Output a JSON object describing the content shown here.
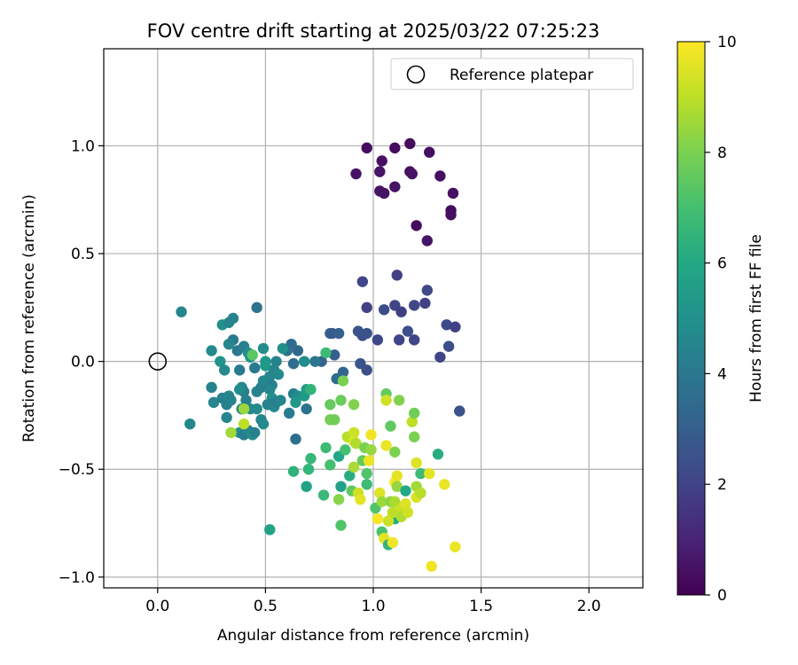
{
  "chart_data": {
    "type": "scatter",
    "title": "FOV centre drift starting at 2025/03/22 07:25:23",
    "xlabel": "Angular distance from reference (arcmin)",
    "ylabel": "Rotation from reference (arcmin)",
    "xlim": [
      -0.25,
      2.25
    ],
    "ylim": [
      -1.05,
      1.45
    ],
    "xticks": [
      0.0,
      0.5,
      1.0,
      1.5,
      2.0
    ],
    "xtick_labels": [
      "0.0",
      "0.5",
      "1.0",
      "1.5",
      "2.0"
    ],
    "yticks": [
      -1.0,
      -0.5,
      0.0,
      0.5,
      1.0
    ],
    "ytick_labels": [
      "−1.0",
      "−0.5",
      "0.0",
      "0.5",
      "1.0"
    ],
    "grid": true,
    "legend": {
      "position": "top-right",
      "entries": [
        "Reference platepar"
      ]
    },
    "reference_point": {
      "x": 0.0,
      "y": 0.0,
      "label": "Reference platepar"
    },
    "colorbar": {
      "label": "Hours from first FF file",
      "colormap": "viridis",
      "range": [
        0,
        10
      ],
      "ticks": [
        0,
        2,
        4,
        6,
        8,
        10
      ],
      "tick_labels": [
        "0",
        "2",
        "4",
        "6",
        "8",
        "10"
      ]
    },
    "points": [
      {
        "x": 0.97,
        "y": 0.99,
        "h": 0.3
      },
      {
        "x": 1.17,
        "y": 1.01,
        "h": 0.3
      },
      {
        "x": 1.26,
        "y": 0.97,
        "h": 0.4
      },
      {
        "x": 1.04,
        "y": 0.93,
        "h": 0.4
      },
      {
        "x": 1.1,
        "y": 0.99,
        "h": 0.3
      },
      {
        "x": 1.03,
        "y": 0.88,
        "h": 0.5
      },
      {
        "x": 0.92,
        "y": 0.87,
        "h": 0.5
      },
      {
        "x": 1.17,
        "y": 0.88,
        "h": 0.4
      },
      {
        "x": 1.18,
        "y": 0.87,
        "h": 0.5
      },
      {
        "x": 1.31,
        "y": 0.86,
        "h": 0.4
      },
      {
        "x": 1.1,
        "y": 0.81,
        "h": 0.5
      },
      {
        "x": 1.03,
        "y": 0.79,
        "h": 0.5
      },
      {
        "x": 1.05,
        "y": 0.78,
        "h": 0.5
      },
      {
        "x": 1.37,
        "y": 0.78,
        "h": 0.4
      },
      {
        "x": 1.36,
        "y": 0.7,
        "h": 0.3
      },
      {
        "x": 1.36,
        "y": 0.68,
        "h": 0.4
      },
      {
        "x": 1.2,
        "y": 0.63,
        "h": 0.3
      },
      {
        "x": 1.25,
        "y": 0.56,
        "h": 0.6
      },
      {
        "x": 1.11,
        "y": 0.4,
        "h": 1.9
      },
      {
        "x": 0.95,
        "y": 0.37,
        "h": 2.1
      },
      {
        "x": 1.25,
        "y": 0.33,
        "h": 2.2
      },
      {
        "x": 0.97,
        "y": 0.25,
        "h": 1.9
      },
      {
        "x": 1.05,
        "y": 0.24,
        "h": 2.3
      },
      {
        "x": 1.1,
        "y": 0.26,
        "h": 2.0
      },
      {
        "x": 1.13,
        "y": 0.23,
        "h": 1.8
      },
      {
        "x": 1.19,
        "y": 0.26,
        "h": 2.2
      },
      {
        "x": 1.24,
        "y": 0.27,
        "h": 1.9
      },
      {
        "x": 1.34,
        "y": 0.17,
        "h": 2.2
      },
      {
        "x": 1.38,
        "y": 0.16,
        "h": 1.9
      },
      {
        "x": 1.16,
        "y": 0.14,
        "h": 2.4
      },
      {
        "x": 1.12,
        "y": 0.1,
        "h": 2.0
      },
      {
        "x": 1.19,
        "y": 0.1,
        "h": 2.1
      },
      {
        "x": 0.93,
        "y": 0.14,
        "h": 2.6
      },
      {
        "x": 0.95,
        "y": 0.12,
        "h": 2.4
      },
      {
        "x": 0.97,
        "y": 0.13,
        "h": 2.5
      },
      {
        "x": 1.02,
        "y": 0.1,
        "h": 2.2
      },
      {
        "x": 1.35,
        "y": 0.07,
        "h": 2.4
      },
      {
        "x": 1.31,
        "y": 0.02,
        "h": 2.0
      },
      {
        "x": 0.94,
        "y": -0.01,
        "h": 2.6
      },
      {
        "x": 0.97,
        "y": -0.04,
        "h": 2.4
      },
      {
        "x": 1.4,
        "y": -0.23,
        "h": 2.5
      },
      {
        "x": 0.8,
        "y": 0.13,
        "h": 3.1
      },
      {
        "x": 0.81,
        "y": 0.13,
        "h": 2.9
      },
      {
        "x": 0.84,
        "y": 0.13,
        "h": 3.0
      },
      {
        "x": 0.76,
        "y": 0.0,
        "h": 3.2
      },
      {
        "x": 0.82,
        "y": 0.03,
        "h": 3.0
      },
      {
        "x": 0.86,
        "y": -0.05,
        "h": 3.3
      },
      {
        "x": 0.83,
        "y": -0.08,
        "h": 3.5
      },
      {
        "x": 0.46,
        "y": 0.25,
        "h": 3.8
      },
      {
        "x": 0.62,
        "y": 0.08,
        "h": 3.5
      },
      {
        "x": 0.6,
        "y": 0.05,
        "h": 3.7
      },
      {
        "x": 0.65,
        "y": 0.05,
        "h": 3.4
      },
      {
        "x": 0.63,
        "y": -0.01,
        "h": 3.6
      },
      {
        "x": 0.69,
        "y": -0.22,
        "h": 3.8
      },
      {
        "x": 0.64,
        "y": -0.36,
        "h": 3.6
      },
      {
        "x": 0.73,
        "y": 0.0,
        "h": 3.9
      },
      {
        "x": 0.61,
        "y": -0.24,
        "h": 4.2
      },
      {
        "x": 0.11,
        "y": 0.23,
        "h": 4.5
      },
      {
        "x": 0.15,
        "y": -0.29,
        "h": 4.6
      },
      {
        "x": 0.25,
        "y": 0.05,
        "h": 4.7
      },
      {
        "x": 0.25,
        "y": -0.12,
        "h": 4.4
      },
      {
        "x": 0.26,
        "y": -0.19,
        "h": 4.5
      },
      {
        "x": 0.3,
        "y": -0.17,
        "h": 4.3
      },
      {
        "x": 0.3,
        "y": 0.17,
        "h": 4.9
      },
      {
        "x": 0.33,
        "y": 0.18,
        "h": 4.6
      },
      {
        "x": 0.35,
        "y": 0.2,
        "h": 4.4
      },
      {
        "x": 0.35,
        "y": 0.1,
        "h": 4.1
      },
      {
        "x": 0.33,
        "y": 0.08,
        "h": 4.5
      },
      {
        "x": 0.37,
        "y": 0.05,
        "h": 4.0
      },
      {
        "x": 0.4,
        "y": 0.07,
        "h": 4.3
      },
      {
        "x": 0.42,
        "y": 0.04,
        "h": 4.8
      },
      {
        "x": 0.43,
        "y": 0.02,
        "h": 5.0
      },
      {
        "x": 0.29,
        "y": 0.0,
        "h": 5.1
      },
      {
        "x": 0.31,
        "y": -0.04,
        "h": 4.7
      },
      {
        "x": 0.32,
        "y": -0.2,
        "h": 4.3
      },
      {
        "x": 0.33,
        "y": -0.16,
        "h": 4.5
      },
      {
        "x": 0.34,
        "y": -0.18,
        "h": 4.4
      },
      {
        "x": 0.32,
        "y": -0.26,
        "h": 4.5
      },
      {
        "x": 0.38,
        "y": -0.04,
        "h": 4.1
      },
      {
        "x": 0.39,
        "y": -0.12,
        "h": 4.5
      },
      {
        "x": 0.4,
        "y": -0.14,
        "h": 4.2
      },
      {
        "x": 0.38,
        "y": -0.13,
        "h": 4.8
      },
      {
        "x": 0.39,
        "y": -0.22,
        "h": 4.5
      },
      {
        "x": 0.41,
        "y": -0.18,
        "h": 4.3
      },
      {
        "x": 0.38,
        "y": -0.33,
        "h": 4.8
      },
      {
        "x": 0.4,
        "y": -0.34,
        "h": 4.2
      },
      {
        "x": 0.42,
        "y": -0.32,
        "h": 4.5
      },
      {
        "x": 0.44,
        "y": -0.34,
        "h": 4.9
      },
      {
        "x": 0.45,
        "y": -0.33,
        "h": 4.3
      },
      {
        "x": 0.43,
        "y": -0.22,
        "h": 4.6
      },
      {
        "x": 0.45,
        "y": -0.03,
        "h": 4.1
      },
      {
        "x": 0.46,
        "y": -0.14,
        "h": 4.4
      },
      {
        "x": 0.46,
        "y": -0.22,
        "h": 4.7
      },
      {
        "x": 0.48,
        "y": -0.12,
        "h": 4.3
      },
      {
        "x": 0.49,
        "y": -0.09,
        "h": 4.6
      },
      {
        "x": 0.49,
        "y": 0.06,
        "h": 4.8
      },
      {
        "x": 0.5,
        "y": 0.0,
        "h": 5.2
      },
      {
        "x": 0.5,
        "y": -0.02,
        "h": 5.4
      },
      {
        "x": 0.48,
        "y": -0.27,
        "h": 4.5
      },
      {
        "x": 0.49,
        "y": -0.29,
        "h": 4.7
      },
      {
        "x": 0.52,
        "y": -0.07,
        "h": 4.6
      },
      {
        "x": 0.53,
        "y": -0.11,
        "h": 4.3
      },
      {
        "x": 0.52,
        "y": -0.13,
        "h": 4.5
      },
      {
        "x": 0.53,
        "y": -0.17,
        "h": 4.8
      },
      {
        "x": 0.51,
        "y": -0.2,
        "h": 4.4
      },
      {
        "x": 0.54,
        "y": -0.21,
        "h": 4.6
      },
      {
        "x": 0.55,
        "y": -0.19,
        "h": 4.3
      },
      {
        "x": 0.54,
        "y": -0.04,
        "h": 4.5
      },
      {
        "x": 0.56,
        "y": -0.06,
        "h": 4.7
      },
      {
        "x": 0.57,
        "y": -0.18,
        "h": 4.5
      },
      {
        "x": 0.55,
        "y": 0.0,
        "h": 4.4
      },
      {
        "x": 0.58,
        "y": 0.06,
        "h": 4.9
      },
      {
        "x": 0.63,
        "y": -0.15,
        "h": 4.3
      },
      {
        "x": 0.65,
        "y": -0.16,
        "h": 4.8
      },
      {
        "x": 0.64,
        "y": -0.19,
        "h": 5.3
      },
      {
        "x": 0.68,
        "y": 0.0,
        "h": 4.8
      },
      {
        "x": 0.68,
        "y": -0.16,
        "h": 5.3
      },
      {
        "x": 0.69,
        "y": -0.13,
        "h": 5.5
      },
      {
        "x": 0.52,
        "y": -0.78,
        "h": 5.8
      },
      {
        "x": 1.3,
        "y": -0.43,
        "h": 6.2
      },
      {
        "x": 1.1,
        "y": -0.73,
        "h": 6.1
      },
      {
        "x": 0.63,
        "y": -0.51,
        "h": 6.4
      },
      {
        "x": 0.69,
        "y": -0.58,
        "h": 5.8
      },
      {
        "x": 0.7,
        "y": -0.5,
        "h": 6.5
      },
      {
        "x": 0.71,
        "y": -0.45,
        "h": 6.6
      },
      {
        "x": 0.78,
        "y": -0.4,
        "h": 6.8
      },
      {
        "x": 0.77,
        "y": -0.62,
        "h": 6.7
      },
      {
        "x": 0.8,
        "y": -0.48,
        "h": 7.0
      },
      {
        "x": 0.8,
        "y": -0.27,
        "h": 7.9
      },
      {
        "x": 0.8,
        "y": -0.2,
        "h": 7.6
      },
      {
        "x": 0.78,
        "y": 0.04,
        "h": 6.8
      },
      {
        "x": 0.82,
        "y": -0.27,
        "h": 7.8
      },
      {
        "x": 0.84,
        "y": -0.44,
        "h": 5.9
      },
      {
        "x": 0.84,
        "y": -0.64,
        "h": 8.2
      },
      {
        "x": 0.85,
        "y": -0.58,
        "h": 5.7
      },
      {
        "x": 0.85,
        "y": -0.76,
        "h": 7.2
      },
      {
        "x": 0.85,
        "y": -0.18,
        "h": 7.7
      },
      {
        "x": 0.86,
        "y": -0.09,
        "h": 8.0
      },
      {
        "x": 0.87,
        "y": -0.41,
        "h": 7.0
      },
      {
        "x": 0.88,
        "y": -0.35,
        "h": 8.9
      },
      {
        "x": 0.89,
        "y": -0.53,
        "h": 6.2
      },
      {
        "x": 0.9,
        "y": -0.6,
        "h": 7.5
      },
      {
        "x": 0.91,
        "y": -0.33,
        "h": 9.2
      },
      {
        "x": 0.91,
        "y": -0.37,
        "h": 9.5
      },
      {
        "x": 0.92,
        "y": -0.38,
        "h": 8.8
      },
      {
        "x": 0.93,
        "y": -0.61,
        "h": 9.2
      },
      {
        "x": 0.94,
        "y": -0.64,
        "h": 9.6
      },
      {
        "x": 0.95,
        "y": -0.46,
        "h": 7.6
      },
      {
        "x": 0.96,
        "y": -0.4,
        "h": 8.0
      },
      {
        "x": 0.97,
        "y": -0.57,
        "h": 6.8
      },
      {
        "x": 0.97,
        "y": -0.52,
        "h": 7.2
      },
      {
        "x": 0.98,
        "y": -0.46,
        "h": 9.7
      },
      {
        "x": 0.99,
        "y": -0.34,
        "h": 9.8
      },
      {
        "x": 0.99,
        "y": -0.41,
        "h": 8.4
      },
      {
        "x": 0.91,
        "y": -0.2,
        "h": 8.1
      },
      {
        "x": 0.91,
        "y": -0.49,
        "h": 8.7
      },
      {
        "x": 1.01,
        "y": -0.68,
        "h": 7.2
      },
      {
        "x": 1.02,
        "y": -0.73,
        "h": 9.9
      },
      {
        "x": 1.03,
        "y": -0.61,
        "h": 9.5
      },
      {
        "x": 1.04,
        "y": -0.65,
        "h": 8.5
      },
      {
        "x": 1.04,
        "y": -0.79,
        "h": 7.1
      },
      {
        "x": 1.05,
        "y": -0.82,
        "h": 9.6
      },
      {
        "x": 1.06,
        "y": -0.39,
        "h": 9.7
      },
      {
        "x": 1.06,
        "y": -0.15,
        "h": 7.6
      },
      {
        "x": 1.06,
        "y": -0.18,
        "h": 9.3
      },
      {
        "x": 1.07,
        "y": -0.74,
        "h": 9.2
      },
      {
        "x": 1.07,
        "y": -0.85,
        "h": 6.5
      },
      {
        "x": 1.08,
        "y": -0.3,
        "h": 7.5
      },
      {
        "x": 1.08,
        "y": -0.65,
        "h": 8.3
      },
      {
        "x": 1.09,
        "y": -0.84,
        "h": 9.8
      },
      {
        "x": 1.09,
        "y": -0.7,
        "h": 9.0
      },
      {
        "x": 1.1,
        "y": -0.42,
        "h": 8.0
      },
      {
        "x": 1.1,
        "y": -0.56,
        "h": 9.9
      },
      {
        "x": 1.1,
        "y": -0.65,
        "h": 8.7
      },
      {
        "x": 1.11,
        "y": -0.53,
        "h": 9.6
      },
      {
        "x": 1.11,
        "y": -0.58,
        "h": 8.4
      },
      {
        "x": 1.12,
        "y": -0.18,
        "h": 8.1
      },
      {
        "x": 1.13,
        "y": -0.68,
        "h": 9.2
      },
      {
        "x": 1.13,
        "y": -0.72,
        "h": 8.8
      },
      {
        "x": 1.15,
        "y": -0.6,
        "h": 6.0
      },
      {
        "x": 1.15,
        "y": -0.66,
        "h": 9.5
      },
      {
        "x": 1.16,
        "y": -0.7,
        "h": 9.3
      },
      {
        "x": 1.18,
        "y": -0.28,
        "h": 9.0
      },
      {
        "x": 1.19,
        "y": -0.24,
        "h": 7.8
      },
      {
        "x": 1.19,
        "y": -0.35,
        "h": 8.0
      },
      {
        "x": 1.2,
        "y": -0.47,
        "h": 9.5
      },
      {
        "x": 1.2,
        "y": -0.58,
        "h": 8.6
      },
      {
        "x": 1.2,
        "y": -0.63,
        "h": 9.4
      },
      {
        "x": 1.22,
        "y": -0.52,
        "h": 6.8
      },
      {
        "x": 1.22,
        "y": -0.61,
        "h": 8.9
      },
      {
        "x": 1.26,
        "y": -0.52,
        "h": 9.6
      },
      {
        "x": 1.27,
        "y": -0.95,
        "h": 9.8
      },
      {
        "x": 1.33,
        "y": -0.57,
        "h": 9.7
      },
      {
        "x": 1.38,
        "y": -0.86,
        "h": 9.7
      },
      {
        "x": 0.4,
        "y": -0.22,
        "h": 8.5
      },
      {
        "x": 0.4,
        "y": -0.29,
        "h": 9.0
      },
      {
        "x": 0.34,
        "y": -0.33,
        "h": 8.6
      },
      {
        "x": 0.44,
        "y": 0.03,
        "h": 7.4
      },
      {
        "x": 0.71,
        "y": -0.13,
        "h": 6.5
      }
    ]
  }
}
